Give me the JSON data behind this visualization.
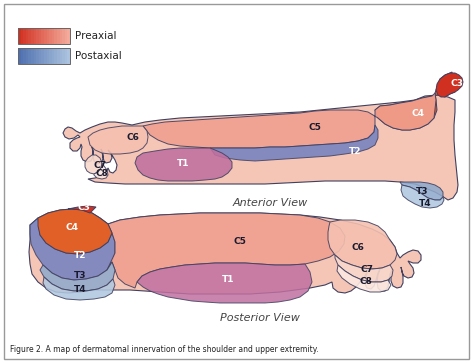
{
  "figure_caption": "Figure 2. A map of dermatomal innervation of the shoulder and upper extremity.",
  "legend": {
    "preaxial_label": "Preaxial",
    "postaxial_label": "Postaxial"
  },
  "anterior_view_label": "Anterior View",
  "posterior_view_label": "Posterior View",
  "colors": {
    "C3": "#D03020",
    "C4": "#E06028",
    "C5": "#F0A090",
    "C6": "#F5C0B0",
    "C7": "#F8D8CC",
    "C8": "#FBE8E0",
    "T1": "#C070A0",
    "T2": "#7080C0",
    "T3": "#90AACC",
    "T4": "#B0C8E0",
    "arm_base": "#F5C5B5",
    "arm_outline": "#404060",
    "label_color": "#1A1A2E",
    "preaxial_left": "#D03020",
    "preaxial_right": "#F5B0A0",
    "postaxial_left": "#5070B0",
    "postaxial_right": "#B0C8E0"
  }
}
